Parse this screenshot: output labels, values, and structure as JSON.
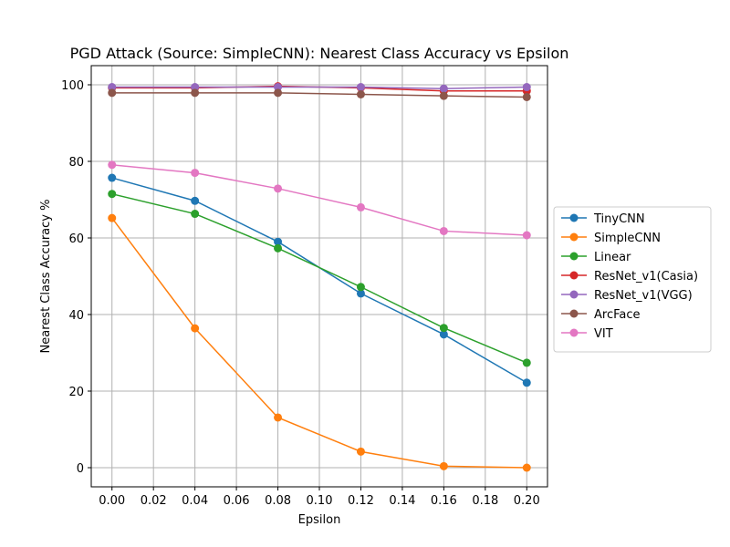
{
  "chart_data": {
    "type": "line",
    "title": "PGD Attack (Source: SimpleCNN): Nearest Class Accuracy vs Epsilon",
    "xlabel": "Epsilon",
    "ylabel": "Nearest Class Accuracy %",
    "xlim": [
      -0.01,
      0.21
    ],
    "ylim": [
      -5,
      105
    ],
    "xticks": [
      0.0,
      0.02,
      0.04,
      0.06,
      0.08,
      0.1,
      0.12,
      0.14,
      0.16,
      0.18,
      0.2
    ],
    "xtick_labels": [
      "0.00",
      "0.02",
      "0.04",
      "0.06",
      "0.08",
      "0.10",
      "0.12",
      "0.14",
      "0.16",
      "0.18",
      "0.20"
    ],
    "yticks": [
      0,
      20,
      40,
      60,
      80,
      100
    ],
    "ytick_labels": [
      "0",
      "20",
      "40",
      "60",
      "80",
      "100"
    ],
    "grid": true,
    "legend_position": "center-right-outside",
    "x": [
      0.0,
      0.04,
      0.08,
      0.12,
      0.16,
      0.2
    ],
    "series": [
      {
        "name": "TinyCNN",
        "color": "#1f77b4",
        "values": [
          75.7,
          69.7,
          59.0,
          45.5,
          34.8,
          22.2
        ]
      },
      {
        "name": "SimpleCNN",
        "color": "#ff7f0e",
        "values": [
          65.2,
          36.4,
          13.1,
          4.2,
          0.4,
          0.0
        ]
      },
      {
        "name": "Linear",
        "color": "#2ca02c",
        "values": [
          71.5,
          66.3,
          57.3,
          47.2,
          36.5,
          27.4
        ]
      },
      {
        "name": "ResNet_v1(Casia)",
        "color": "#d62728",
        "values": [
          99.2,
          99.2,
          99.6,
          99.2,
          98.4,
          98.4
        ]
      },
      {
        "name": "ResNet_v1(VGG)",
        "color": "#9467bd",
        "values": [
          99.4,
          99.4,
          99.4,
          99.4,
          99.0,
          99.4
        ]
      },
      {
        "name": "ArcFace",
        "color": "#8c564b",
        "values": [
          97.9,
          97.9,
          97.9,
          97.5,
          97.1,
          96.8
        ]
      },
      {
        "name": "VIT",
        "color": "#e377c2",
        "values": [
          79.1,
          77.0,
          72.9,
          68.0,
          61.8,
          60.7
        ]
      }
    ]
  }
}
